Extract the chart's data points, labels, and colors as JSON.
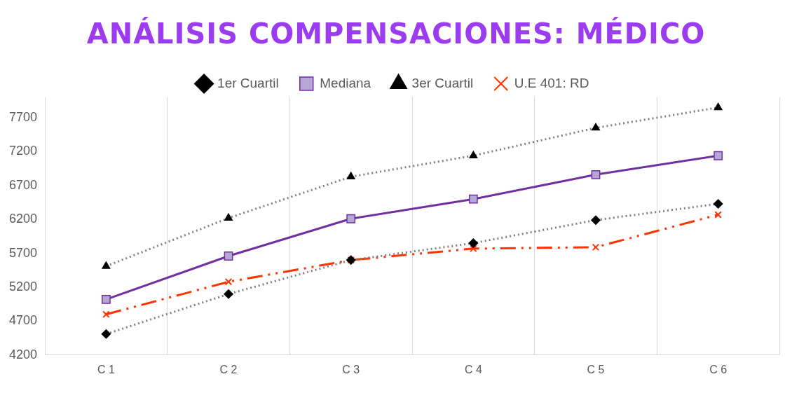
{
  "chart_data": {
    "type": "line",
    "title": "ANÁLISIS COMPENSACIONES: MÉDICO",
    "categories": [
      "C 1",
      "C 2",
      "C 3",
      "C 4",
      "C 5",
      "C 6"
    ],
    "series": [
      {
        "name": "1er Cuartil",
        "color": "#7f7f7f",
        "marker": "diamond",
        "line_style": "dotted",
        "values": [
          4510,
          5100,
          5600,
          5850,
          6190,
          6430
        ]
      },
      {
        "name": "Mediana",
        "color": "#7030a0",
        "marker": "square",
        "line_style": "solid",
        "values": [
          5020,
          5660,
          6210,
          6500,
          6860,
          7140
        ]
      },
      {
        "name": "3er Cuartil",
        "color": "#7f7f7f",
        "marker": "triangle",
        "line_style": "dotted",
        "values": [
          5510,
          6220,
          6830,
          7140,
          7550,
          7850
        ]
      },
      {
        "name": "U.E 401: RD",
        "color": "#ff3300",
        "marker": "cross",
        "line_style": "dashed",
        "values": [
          4800,
          5280,
          5600,
          5770,
          5790,
          6270
        ]
      }
    ],
    "ylim": [
      4200,
      8000
    ],
    "yticks": [
      4200,
      4700,
      5200,
      5700,
      6200,
      6700,
      7200,
      7700
    ],
    "grid": "x",
    "legend": "top"
  }
}
